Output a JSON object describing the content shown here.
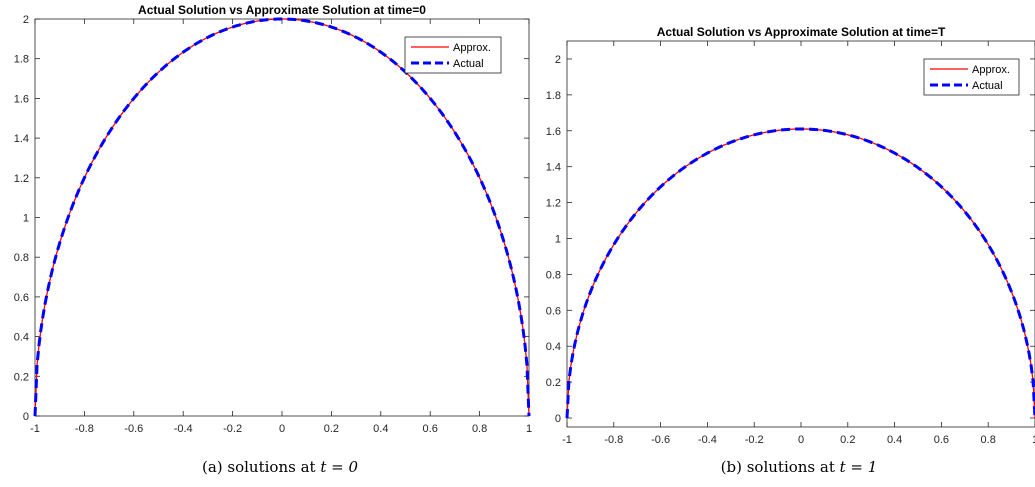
{
  "chart_data": [
    {
      "type": "line",
      "title": "Actual Solution vs Approximate Solution at time=0",
      "caption_prefix": "(a) solutions at ",
      "caption_math": "t = 0",
      "xlim": [
        -1,
        1
      ],
      "ylim": [
        0,
        2
      ],
      "xticks": [
        "-1",
        "-0.8",
        "-0.6",
        "-0.4",
        "-0.2",
        "0",
        "0.2",
        "0.4",
        "0.6",
        "0.8",
        "1"
      ],
      "yticks": [
        "0",
        "0.2",
        "0.4",
        "0.6",
        "0.8",
        "1",
        "1.2",
        "1.4",
        "1.6",
        "1.8",
        "2"
      ],
      "grid": false,
      "legend_position": "top-right",
      "peak": 2.0,
      "series": [
        {
          "name": "Approx.",
          "color": "#ff0000",
          "style": "solid"
        },
        {
          "name": "Actual",
          "color": "#0000ff",
          "style": "dashed"
        }
      ]
    },
    {
      "type": "line",
      "title": "Actual Solution vs Approximate Solution at time=T",
      "caption_prefix": "(b) solutions at ",
      "caption_math": "t = 1",
      "xlim": [
        -1,
        1
      ],
      "ylim": [
        -0.05,
        2.1
      ],
      "xticks": [
        "-1",
        "-0.8",
        "-0.6",
        "-0.4",
        "-0.2",
        "0",
        "0.2",
        "0.4",
        "0.6",
        "0.8",
        "1"
      ],
      "yticks": [
        "0",
        "0.2",
        "0.4",
        "0.6",
        "0.8",
        "1",
        "1.2",
        "1.4",
        "1.6",
        "1.8",
        "2"
      ],
      "grid": false,
      "legend_position": "top-right",
      "peak": 1.61,
      "series": [
        {
          "name": "Approx.",
          "color": "#ff0000",
          "style": "solid"
        },
        {
          "name": "Actual",
          "color": "#0000ff",
          "style": "dashed"
        }
      ]
    }
  ]
}
